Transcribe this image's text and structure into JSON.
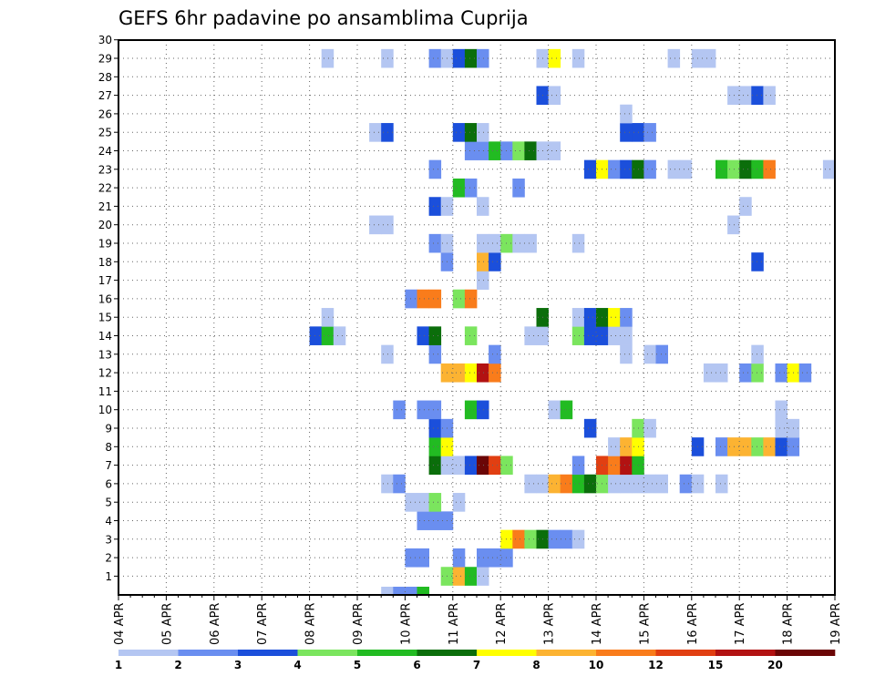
{
  "chart_data": {
    "type": "heatmap",
    "title": "GEFS 6hr padavine po ansamblima Cuprija",
    "xlabel": "",
    "ylabel": "",
    "x_tick_labels": [
      "04 APR",
      "05 APR",
      "06 APR",
      "07 APR",
      "08 APR",
      "09 APR",
      "10 APR",
      "11 APR",
      "12 APR",
      "13 APR",
      "14 APR",
      "15 APR",
      "16 APR",
      "17 APR",
      "18 APR",
      "19 APR"
    ],
    "y_tick_labels": [
      "1",
      "2",
      "3",
      "4",
      "5",
      "6",
      "7",
      "8",
      "9",
      "10",
      "11",
      "12",
      "13",
      "14",
      "15",
      "16",
      "17",
      "18",
      "19",
      "20",
      "21",
      "22",
      "23",
      "24",
      "25",
      "26",
      "27",
      "28",
      "29",
      "30"
    ],
    "ylim": [
      1,
      30
    ],
    "time_steps": 60,
    "grid": "dotted",
    "legend_position": "bottom",
    "legend_labels": [
      "1",
      "2",
      "3",
      "4",
      "5",
      "6",
      "7",
      "8",
      "10",
      "12",
      "15",
      "20"
    ],
    "legend_colors": [
      "#b4c6f2",
      "#6a8ef0",
      "#1b4fdb",
      "#7be55e",
      "#22bb22",
      "#0b6e0b",
      "#ffff00",
      "#fcb332",
      "#f97c1b",
      "#e13f12",
      "#b21212",
      "#6b0606"
    ],
    "colors_by_category": {
      "1": "#b4c6f2",
      "2": "#6a8ef0",
      "3": "#1b4fdb",
      "4": "#7be55e",
      "5": "#22bb22",
      "6": "#0b6e0b",
      "7": "#ffff00",
      "8": "#fcb332",
      "9": "#f97c1b",
      "10": "#e13f12",
      "11": "#b21212",
      "12": "#6b0606"
    },
    "cells_note": "each entry: [time_step (0 = 04 APR 00z, 6 h steps), ensemble member, category index 1-12 into legend_colors]",
    "cells": [
      [
        22,
        0,
        1
      ],
      [
        23,
        0,
        2
      ],
      [
        24,
        0,
        2
      ],
      [
        25,
        0,
        5
      ],
      [
        27,
        1,
        4
      ],
      [
        28,
        1,
        8
      ],
      [
        29,
        1,
        5
      ],
      [
        30,
        1,
        1
      ],
      [
        24,
        2,
        2
      ],
      [
        25,
        2,
        2
      ],
      [
        28,
        2,
        2
      ],
      [
        30,
        2,
        2
      ],
      [
        31,
        2,
        2
      ],
      [
        32,
        2,
        2
      ],
      [
        32,
        3,
        7
      ],
      [
        33,
        3,
        9
      ],
      [
        34,
        3,
        4
      ],
      [
        35,
        3,
        6
      ],
      [
        36,
        3,
        2
      ],
      [
        37,
        3,
        2
      ],
      [
        38,
        3,
        1
      ],
      [
        25,
        4,
        2
      ],
      [
        26,
        4,
        2
      ],
      [
        27,
        4,
        2
      ],
      [
        24,
        5,
        1
      ],
      [
        25,
        5,
        1
      ],
      [
        26,
        5,
        4
      ],
      [
        28,
        5,
        1
      ],
      [
        22,
        6,
        1
      ],
      [
        23,
        6,
        2
      ],
      [
        34,
        6,
        1
      ],
      [
        35,
        6,
        1
      ],
      [
        36,
        6,
        8
      ],
      [
        37,
        6,
        9
      ],
      [
        38,
        6,
        5
      ],
      [
        39,
        6,
        6
      ],
      [
        40,
        6,
        4
      ],
      [
        41,
        6,
        1
      ],
      [
        42,
        6,
        1
      ],
      [
        43,
        6,
        1
      ],
      [
        44,
        6,
        1
      ],
      [
        45,
        6,
        1
      ],
      [
        47,
        6,
        2
      ],
      [
        48,
        6,
        1
      ],
      [
        50,
        6,
        1
      ],
      [
        26,
        7,
        6
      ],
      [
        27,
        7,
        1
      ],
      [
        28,
        7,
        1
      ],
      [
        29,
        7,
        3
      ],
      [
        30,
        7,
        12
      ],
      [
        31,
        7,
        10
      ],
      [
        32,
        7,
        4
      ],
      [
        38,
        7,
        2
      ],
      [
        40,
        7,
        10
      ],
      [
        41,
        7,
        9
      ],
      [
        42,
        7,
        11
      ],
      [
        43,
        7,
        5
      ],
      [
        26,
        8,
        5
      ],
      [
        27,
        8,
        7
      ],
      [
        41,
        8,
        1
      ],
      [
        42,
        8,
        8
      ],
      [
        43,
        8,
        7
      ],
      [
        48,
        8,
        3
      ],
      [
        50,
        8,
        2
      ],
      [
        51,
        8,
        8
      ],
      [
        52,
        8,
        8
      ],
      [
        53,
        8,
        4
      ],
      [
        54,
        8,
        8
      ],
      [
        55,
        8,
        3
      ],
      [
        56,
        8,
        2
      ],
      [
        26,
        9,
        3
      ],
      [
        27,
        9,
        2
      ],
      [
        39,
        9,
        3
      ],
      [
        43,
        9,
        4
      ],
      [
        44,
        9,
        1
      ],
      [
        55,
        9,
        1
      ],
      [
        56,
        9,
        1
      ],
      [
        23,
        10,
        2
      ],
      [
        25,
        10,
        2
      ],
      [
        26,
        10,
        2
      ],
      [
        29,
        10,
        5
      ],
      [
        30,
        10,
        3
      ],
      [
        36,
        10,
        1
      ],
      [
        37,
        10,
        5
      ],
      [
        55,
        10,
        1
      ],
      [
        27,
        12,
        8
      ],
      [
        28,
        12,
        8
      ],
      [
        29,
        12,
        7
      ],
      [
        30,
        12,
        11
      ],
      [
        31,
        12,
        9
      ],
      [
        49,
        12,
        1
      ],
      [
        50,
        12,
        1
      ],
      [
        52,
        12,
        2
      ],
      [
        53,
        12,
        4
      ],
      [
        55,
        12,
        2
      ],
      [
        56,
        12,
        7
      ],
      [
        57,
        12,
        2
      ],
      [
        22,
        13,
        1
      ],
      [
        26,
        13,
        2
      ],
      [
        31,
        13,
        2
      ],
      [
        42,
        13,
        1
      ],
      [
        44,
        13,
        1
      ],
      [
        45,
        13,
        2
      ],
      [
        53,
        13,
        1
      ],
      [
        16,
        14,
        3
      ],
      [
        17,
        14,
        5
      ],
      [
        18,
        14,
        1
      ],
      [
        25,
        14,
        3
      ],
      [
        26,
        14,
        6
      ],
      [
        29,
        14,
        4
      ],
      [
        34,
        14,
        1
      ],
      [
        35,
        14,
        1
      ],
      [
        38,
        14,
        4
      ],
      [
        39,
        14,
        3
      ],
      [
        40,
        14,
        3
      ],
      [
        41,
        14,
        1
      ],
      [
        42,
        14,
        1
      ],
      [
        17,
        15,
        1
      ],
      [
        35,
        15,
        6
      ],
      [
        38,
        15,
        1
      ],
      [
        39,
        15,
        3
      ],
      [
        40,
        15,
        6
      ],
      [
        41,
        15,
        7
      ],
      [
        42,
        15,
        2
      ],
      [
        24,
        16,
        2
      ],
      [
        25,
        16,
        9
      ],
      [
        26,
        16,
        9
      ],
      [
        28,
        16,
        4
      ],
      [
        29,
        16,
        9
      ],
      [
        30,
        17,
        1
      ],
      [
        27,
        18,
        2
      ],
      [
        30,
        18,
        8
      ],
      [
        31,
        18,
        3
      ],
      [
        53,
        18,
        3
      ],
      [
        26,
        19,
        2
      ],
      [
        27,
        19,
        1
      ],
      [
        30,
        19,
        1
      ],
      [
        31,
        19,
        1
      ],
      [
        32,
        19,
        4
      ],
      [
        33,
        19,
        1
      ],
      [
        34,
        19,
        1
      ],
      [
        38,
        19,
        1
      ],
      [
        21,
        20,
        1
      ],
      [
        22,
        20,
        1
      ],
      [
        51,
        20,
        1
      ],
      [
        26,
        21,
        3
      ],
      [
        27,
        21,
        1
      ],
      [
        30,
        21,
        1
      ],
      [
        52,
        21,
        1
      ],
      [
        28,
        22,
        5
      ],
      [
        29,
        22,
        2
      ],
      [
        33,
        22,
        2
      ],
      [
        26,
        23,
        2
      ],
      [
        39,
        23,
        3
      ],
      [
        40,
        23,
        7
      ],
      [
        41,
        23,
        2
      ],
      [
        42,
        23,
        3
      ],
      [
        43,
        23,
        6
      ],
      [
        44,
        23,
        2
      ],
      [
        46,
        23,
        1
      ],
      [
        47,
        23,
        1
      ],
      [
        50,
        23,
        5
      ],
      [
        51,
        23,
        4
      ],
      [
        52,
        23,
        6
      ],
      [
        53,
        23,
        5
      ],
      [
        54,
        23,
        9
      ],
      [
        59,
        23,
        1
      ],
      [
        29,
        24,
        2
      ],
      [
        30,
        24,
        2
      ],
      [
        31,
        24,
        5
      ],
      [
        32,
        24,
        2
      ],
      [
        33,
        24,
        4
      ],
      [
        34,
        24,
        6
      ],
      [
        35,
        24,
        1
      ],
      [
        36,
        24,
        1
      ],
      [
        21,
        25,
        1
      ],
      [
        22,
        25,
        3
      ],
      [
        28,
        25,
        3
      ],
      [
        29,
        25,
        6
      ],
      [
        30,
        25,
        1
      ],
      [
        42,
        25,
        3
      ],
      [
        43,
        25,
        3
      ],
      [
        44,
        25,
        2
      ],
      [
        42,
        26,
        1
      ],
      [
        35,
        27,
        3
      ],
      [
        36,
        27,
        1
      ],
      [
        51,
        27,
        1
      ],
      [
        52,
        27,
        1
      ],
      [
        53,
        27,
        3
      ],
      [
        54,
        27,
        1
      ],
      [
        17,
        29,
        1
      ],
      [
        22,
        29,
        1
      ],
      [
        26,
        29,
        2
      ],
      [
        27,
        29,
        1
      ],
      [
        28,
        29,
        3
      ],
      [
        29,
        29,
        6
      ],
      [
        30,
        29,
        2
      ],
      [
        35,
        29,
        1
      ],
      [
        36,
        29,
        7
      ],
      [
        38,
        29,
        1
      ],
      [
        46,
        29,
        1
      ],
      [
        48,
        29,
        1
      ],
      [
        49,
        29,
        1
      ]
    ]
  }
}
